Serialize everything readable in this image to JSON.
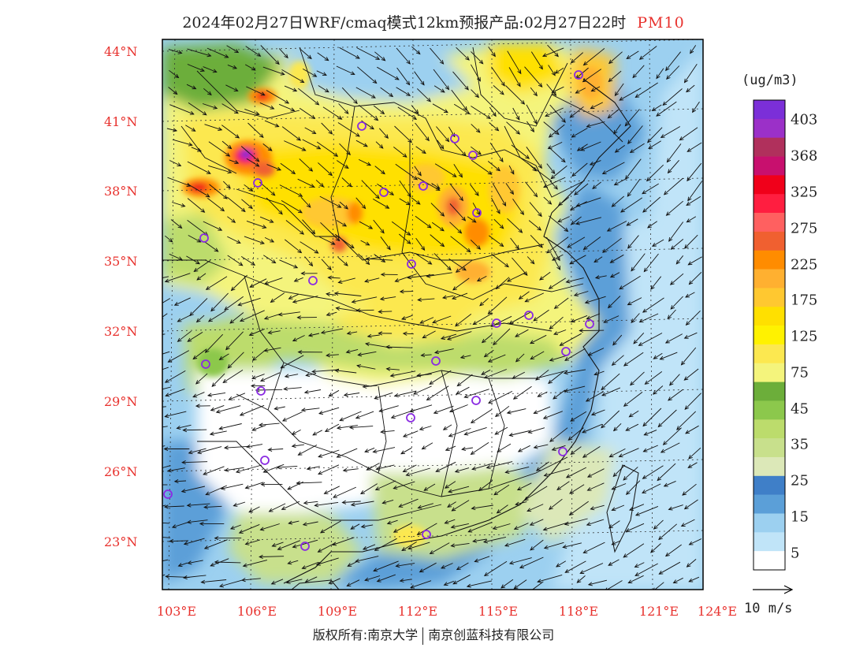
{
  "title": {
    "main": "2024年02月27日WRF/cmaq模式12km预报产品:02月27日22时",
    "variable": "PM10"
  },
  "map": {
    "lat_labels": [
      "44°N",
      "41°N",
      "38°N",
      "35°N",
      "32°N",
      "29°N",
      "26°N",
      "23°N"
    ],
    "lon_labels": [
      "103°E",
      "106°E",
      "109°E",
      "112°E",
      "115°E",
      "118°E",
      "121°E",
      "124°E"
    ],
    "lat_values": [
      44,
      41,
      38,
      35,
      32,
      29,
      26,
      23
    ],
    "lon_values": [
      103,
      106,
      109,
      112,
      115,
      118,
      121,
      124
    ]
  },
  "colorbar": {
    "unit": "(ug/m3)",
    "labels": [
      "403",
      "368",
      "325",
      "275",
      "225",
      "175",
      "125",
      "75",
      "45",
      "35",
      "25",
      "15",
      "5"
    ],
    "colors": [
      "#7b2fd8",
      "#9b30c8",
      "#b0305c",
      "#c8106e",
      "#f0001a",
      "#ff1e40",
      "#ff6060",
      "#f06030",
      "#ff8c00",
      "#ffb030",
      "#ffc830",
      "#ffe000",
      "#fff200",
      "#fce850",
      "#f4f47c",
      "#6cae3a",
      "#8cc84c",
      "#bcdc6c",
      "#c8e08c",
      "#dce8b8",
      "#3f7fc8",
      "#5b9fd8",
      "#9cd0f0",
      "#c0e4f8",
      "#ffffff"
    ]
  },
  "wind_reference": {
    "label": "10 m/s"
  },
  "copyright": {
    "left": "版权所有:南京大学",
    "right": "南京创蓝科技有限公司"
  }
}
